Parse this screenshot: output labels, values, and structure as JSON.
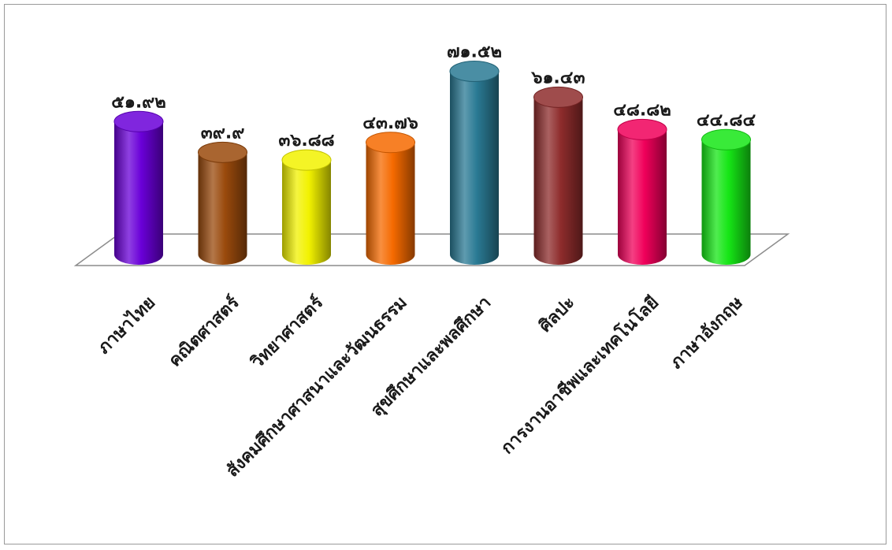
{
  "chart_data": {
    "type": "bar",
    "categories": [
      "ภาษาไทย",
      "คณิตศาสตร์",
      "วิทยาศาสตร์",
      "สังคมศึกษาศาสนาและวัฒนธรรม",
      "สุขศึกษาและพลศึกษา",
      "ศิลปะ",
      "การงานอาชีพและเทคโนโลยี",
      "ภาษาอังกฤษ"
    ],
    "values": [
      51.92,
      39.9,
      36.88,
      43.76,
      71.52,
      61.43,
      48.82,
      44.84
    ],
    "data_labels": [
      "๕๑.๙๒",
      "๓๙.๙",
      "๓๖.๘๘",
      "๔๓.๗๖",
      "๗๑.๕๒",
      "๖๑.๔๓",
      "๔๘.๘๒",
      "๔๔.๘๔"
    ],
    "colors": [
      "#6a00d8",
      "#9a4a0c",
      "#f2f200",
      "#f56a00",
      "#2a7a94",
      "#8e2c2c",
      "#f0005a",
      "#16e616"
    ],
    "ylim": [
      0,
      80
    ],
    "grid": false,
    "legend": "none",
    "title": "",
    "xlabel": "",
    "ylabel": ""
  }
}
